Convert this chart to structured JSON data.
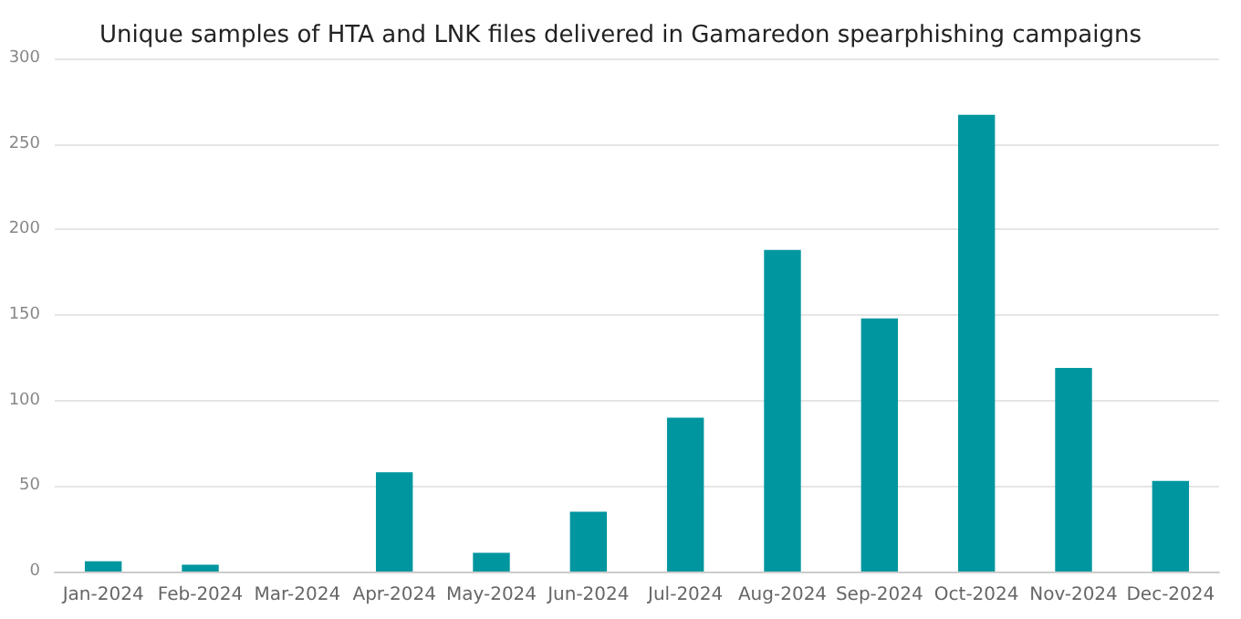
{
  "chart_data": {
    "type": "bar",
    "title": "Unique samples of HTA and LNK files delivered in Gamaredon spearphishing campaigns",
    "categories": [
      "Jan-2024",
      "Feb-2024",
      "Mar-2024",
      "Apr-2024",
      "May-2024",
      "Jun-2024",
      "Jul-2024",
      "Aug-2024",
      "Sep-2024",
      "Oct-2024",
      "Nov-2024",
      "Dec-2024"
    ],
    "values": [
      6,
      4,
      0,
      58,
      11,
      35,
      90,
      188,
      148,
      267,
      119,
      53
    ],
    "color": "#00969f",
    "ylim": [
      0,
      300
    ],
    "yticks": [
      0,
      50,
      100,
      150,
      200,
      250,
      300
    ],
    "grid": "y"
  }
}
